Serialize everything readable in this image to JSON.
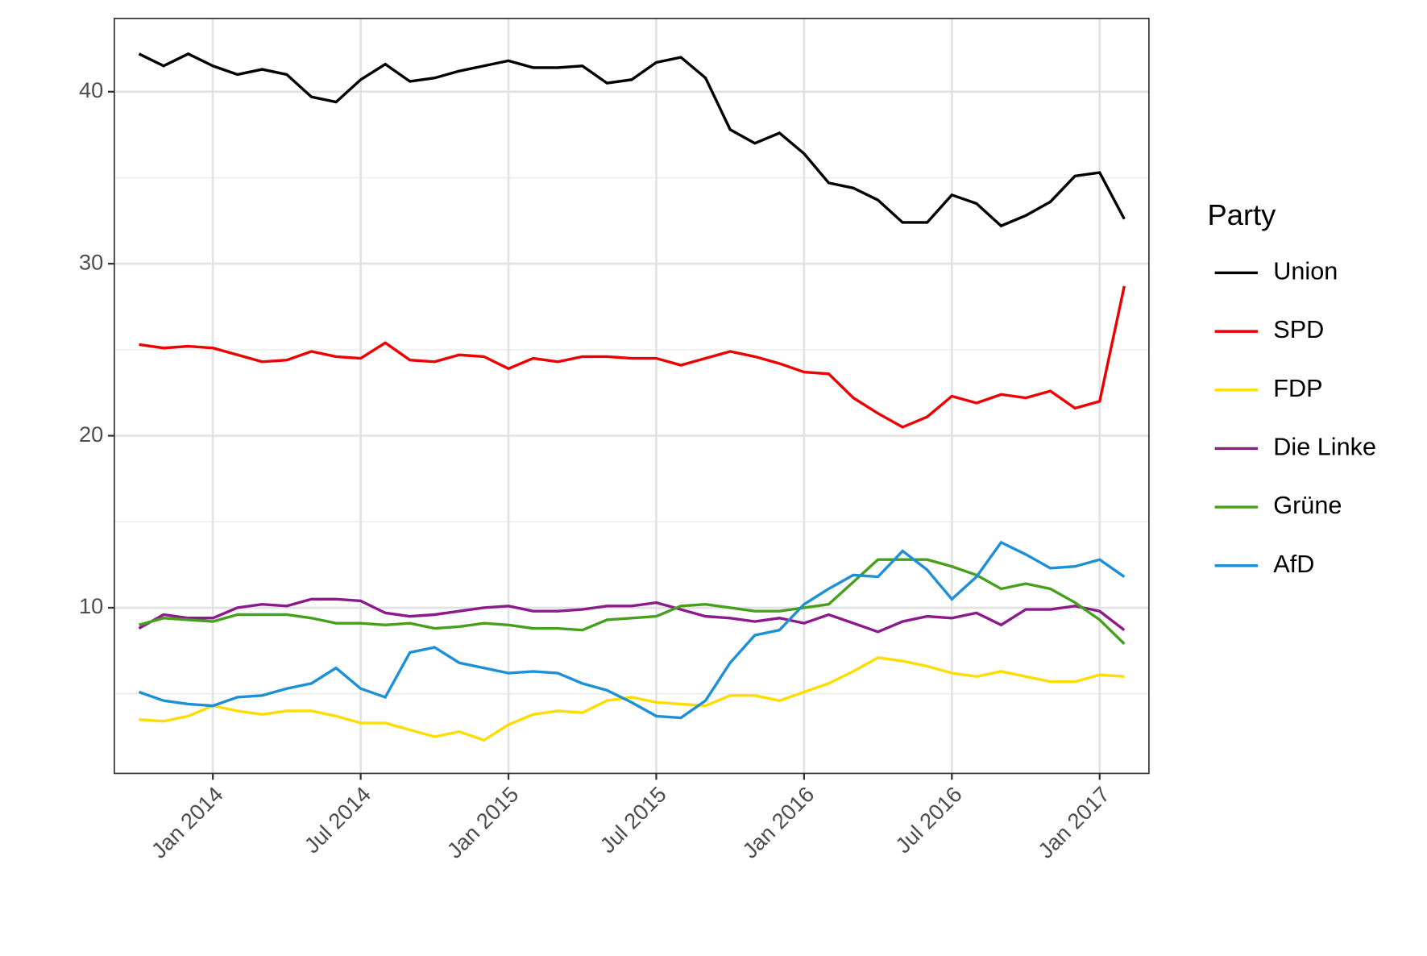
{
  "chart_data": {
    "type": "line",
    "x": [
      "2013-10",
      "2013-11",
      "2013-12",
      "2014-01",
      "2014-02",
      "2014-03",
      "2014-04",
      "2014-05",
      "2014-06",
      "2014-07",
      "2014-08",
      "2014-09",
      "2014-10",
      "2014-11",
      "2014-12",
      "2015-01",
      "2015-02",
      "2015-03",
      "2015-04",
      "2015-05",
      "2015-06",
      "2015-07",
      "2015-08",
      "2015-09",
      "2015-10",
      "2015-11",
      "2015-12",
      "2016-01",
      "2016-02",
      "2016-03",
      "2016-04",
      "2016-05",
      "2016-06",
      "2016-07",
      "2016-08",
      "2016-09",
      "2016-10",
      "2016-11",
      "2016-12",
      "2017-01",
      "2017-02"
    ],
    "series": [
      {
        "name": "Union",
        "color": "#000000",
        "values": [
          42.2,
          41.5,
          42.2,
          41.5,
          41.0,
          41.3,
          41.0,
          39.7,
          39.4,
          40.7,
          41.6,
          40.6,
          40.8,
          41.2,
          41.5,
          41.8,
          41.4,
          41.4,
          41.5,
          40.5,
          40.7,
          41.7,
          42.0,
          40.8,
          37.8,
          37.0,
          37.6,
          36.4,
          34.7,
          34.4,
          33.7,
          32.4,
          32.4,
          34.0,
          33.5,
          32.2,
          32.8,
          33.6,
          35.1,
          35.3,
          32.6
        ]
      },
      {
        "name": "SPD",
        "color": "#ee0000",
        "values": [
          25.3,
          25.1,
          25.2,
          25.1,
          24.7,
          24.3,
          24.4,
          24.9,
          24.6,
          24.5,
          25.4,
          24.4,
          24.3,
          24.7,
          24.6,
          23.9,
          24.5,
          24.3,
          24.6,
          24.6,
          24.5,
          24.5,
          24.1,
          24.5,
          24.9,
          24.6,
          24.2,
          23.7,
          23.6,
          22.2,
          21.3,
          20.5,
          21.1,
          22.3,
          21.9,
          22.4,
          22.2,
          22.6,
          21.6,
          22.0,
          28.7
        ]
      },
      {
        "name": "FDP",
        "color": "#ffdd00",
        "values": [
          3.5,
          3.4,
          3.7,
          4.3,
          4.0,
          3.8,
          4.0,
          4.0,
          3.7,
          3.3,
          3.3,
          2.9,
          2.5,
          2.8,
          2.3,
          3.2,
          3.8,
          4.0,
          3.9,
          4.6,
          4.8,
          4.5,
          4.4,
          4.3,
          4.9,
          4.9,
          4.6,
          5.1,
          5.6,
          6.3,
          7.1,
          6.9,
          6.6,
          6.2,
          6.0,
          6.3,
          6.0,
          5.7,
          5.7,
          6.1,
          6.0
        ]
      },
      {
        "name": "Die Linke",
        "color": "#8b1a8b",
        "values": [
          8.8,
          9.6,
          9.4,
          9.4,
          10.0,
          10.2,
          10.1,
          10.5,
          10.5,
          10.4,
          9.7,
          9.5,
          9.6,
          9.8,
          10.0,
          10.1,
          9.8,
          9.8,
          9.9,
          10.1,
          10.1,
          10.3,
          9.9,
          9.5,
          9.4,
          9.2,
          9.4,
          9.1,
          9.6,
          9.1,
          8.6,
          9.2,
          9.5,
          9.4,
          9.7,
          9.0,
          9.9,
          9.9,
          10.1,
          9.8,
          8.7
        ]
      },
      {
        "name": "Grüne",
        "color": "#46a01e",
        "values": [
          9.0,
          9.4,
          9.3,
          9.2,
          9.6,
          9.6,
          9.6,
          9.4,
          9.1,
          9.1,
          9.0,
          9.1,
          8.8,
          8.9,
          9.1,
          9.0,
          8.8,
          8.8,
          8.7,
          9.3,
          9.4,
          9.5,
          10.1,
          10.2,
          10.0,
          9.8,
          9.8,
          10.0,
          10.2,
          11.5,
          12.8,
          12.8,
          12.8,
          12.4,
          11.9,
          11.1,
          11.4,
          11.1,
          10.3,
          9.3,
          7.9
        ]
      },
      {
        "name": "AfD",
        "color": "#1e90d6",
        "values": [
          5.1,
          4.6,
          4.4,
          4.3,
          4.8,
          4.9,
          5.3,
          5.6,
          6.5,
          5.3,
          4.8,
          7.4,
          7.7,
          6.8,
          6.5,
          6.2,
          6.3,
          6.2,
          5.6,
          5.2,
          4.5,
          3.7,
          3.6,
          4.6,
          6.8,
          8.4,
          8.7,
          10.2,
          11.1,
          11.9,
          11.8,
          13.3,
          12.2,
          10.5,
          11.8,
          13.8,
          13.1,
          12.3,
          12.4,
          12.8,
          11.8
        ]
      }
    ],
    "legend_title": "Party",
    "legend": "right",
    "grid": true,
    "xlim": [
      "2013-09",
      "2017-03"
    ],
    "xticks": [
      {
        "value": "2014-01",
        "label": "Jan 2014"
      },
      {
        "value": "2014-07",
        "label": "Jul 2014"
      },
      {
        "value": "2015-01",
        "label": "Jan 2015"
      },
      {
        "value": "2015-07",
        "label": "Jul 2015"
      },
      {
        "value": "2016-01",
        "label": "Jan 2016"
      },
      {
        "value": "2016-07",
        "label": "Jul 2016"
      },
      {
        "value": "2017-01",
        "label": "Jan 2017"
      }
    ],
    "ylim": [
      0.37,
      44.26
    ],
    "yticks": [
      10,
      20,
      30,
      40
    ],
    "yminorticks": [
      5,
      15,
      25,
      35
    ]
  }
}
